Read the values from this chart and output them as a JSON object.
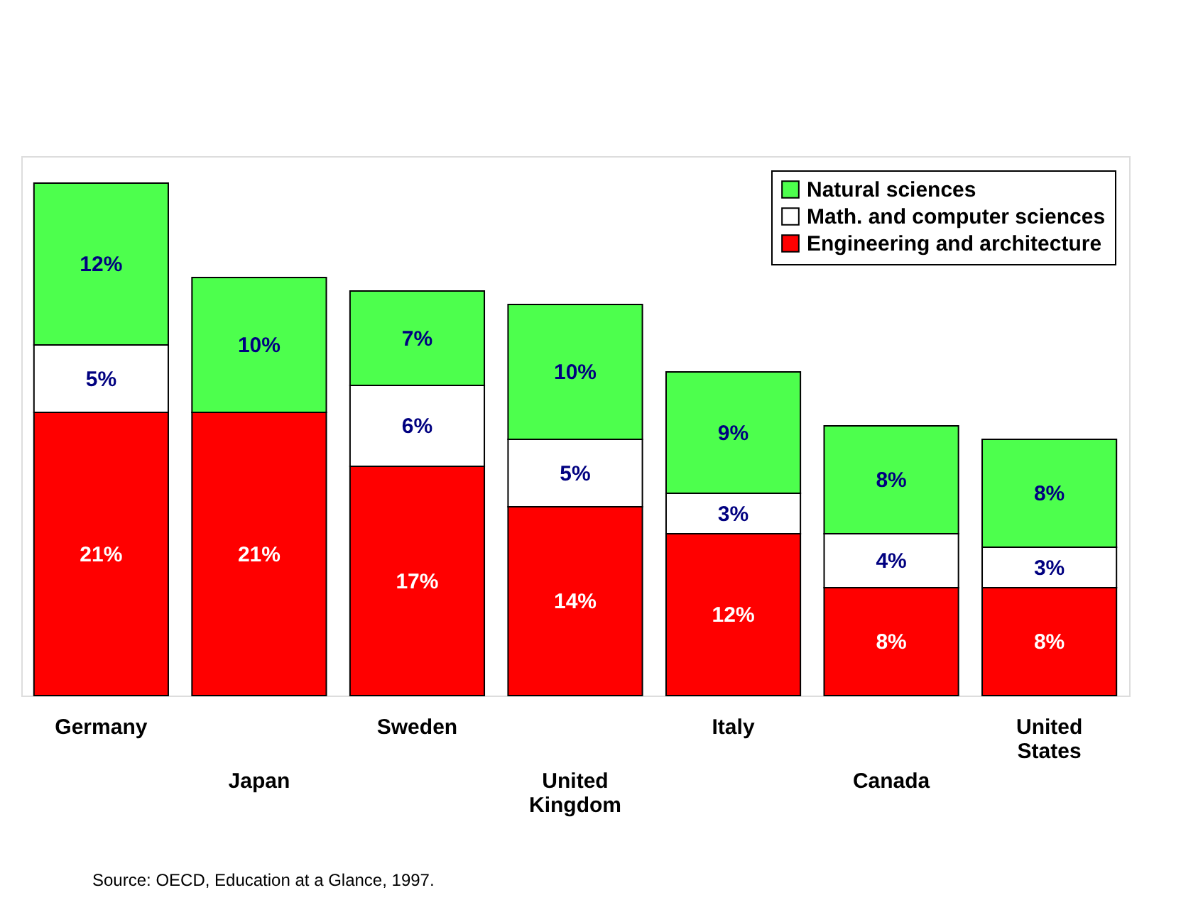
{
  "chart_data": {
    "type": "bar",
    "stacked": true,
    "categories": [
      "Germany",
      "Japan",
      "Sweden",
      "United Kingdom",
      "Italy",
      "Canada",
      "United States"
    ],
    "series": [
      {
        "name": "Engineering and architecture",
        "color": "#ff0000",
        "values": [
          21,
          21,
          17,
          14,
          12,
          8,
          8
        ],
        "value_labels": [
          "21%",
          "21%",
          "17%",
          "14%",
          "12%",
          "8%",
          "8%"
        ]
      },
      {
        "name": "Math. and computer sciences",
        "color": "#ffffff",
        "values": [
          5,
          null,
          6,
          5,
          3,
          4,
          3
        ],
        "value_labels": [
          "5%",
          null,
          "6%",
          "5%",
          "3%",
          "4%",
          "3%"
        ]
      },
      {
        "name": "Natural sciences",
        "color": "#4dff4d",
        "values": [
          12,
          10,
          7,
          10,
          9,
          8,
          8
        ],
        "value_labels": [
          "12%",
          "10%",
          "7%",
          "10%",
          "9%",
          "8%",
          "8%"
        ]
      }
    ],
    "legend": "top right",
    "tick_labels": "x",
    "annotations": [
      "Source: OECD, Education at a Glance, 1997."
    ]
  }
}
